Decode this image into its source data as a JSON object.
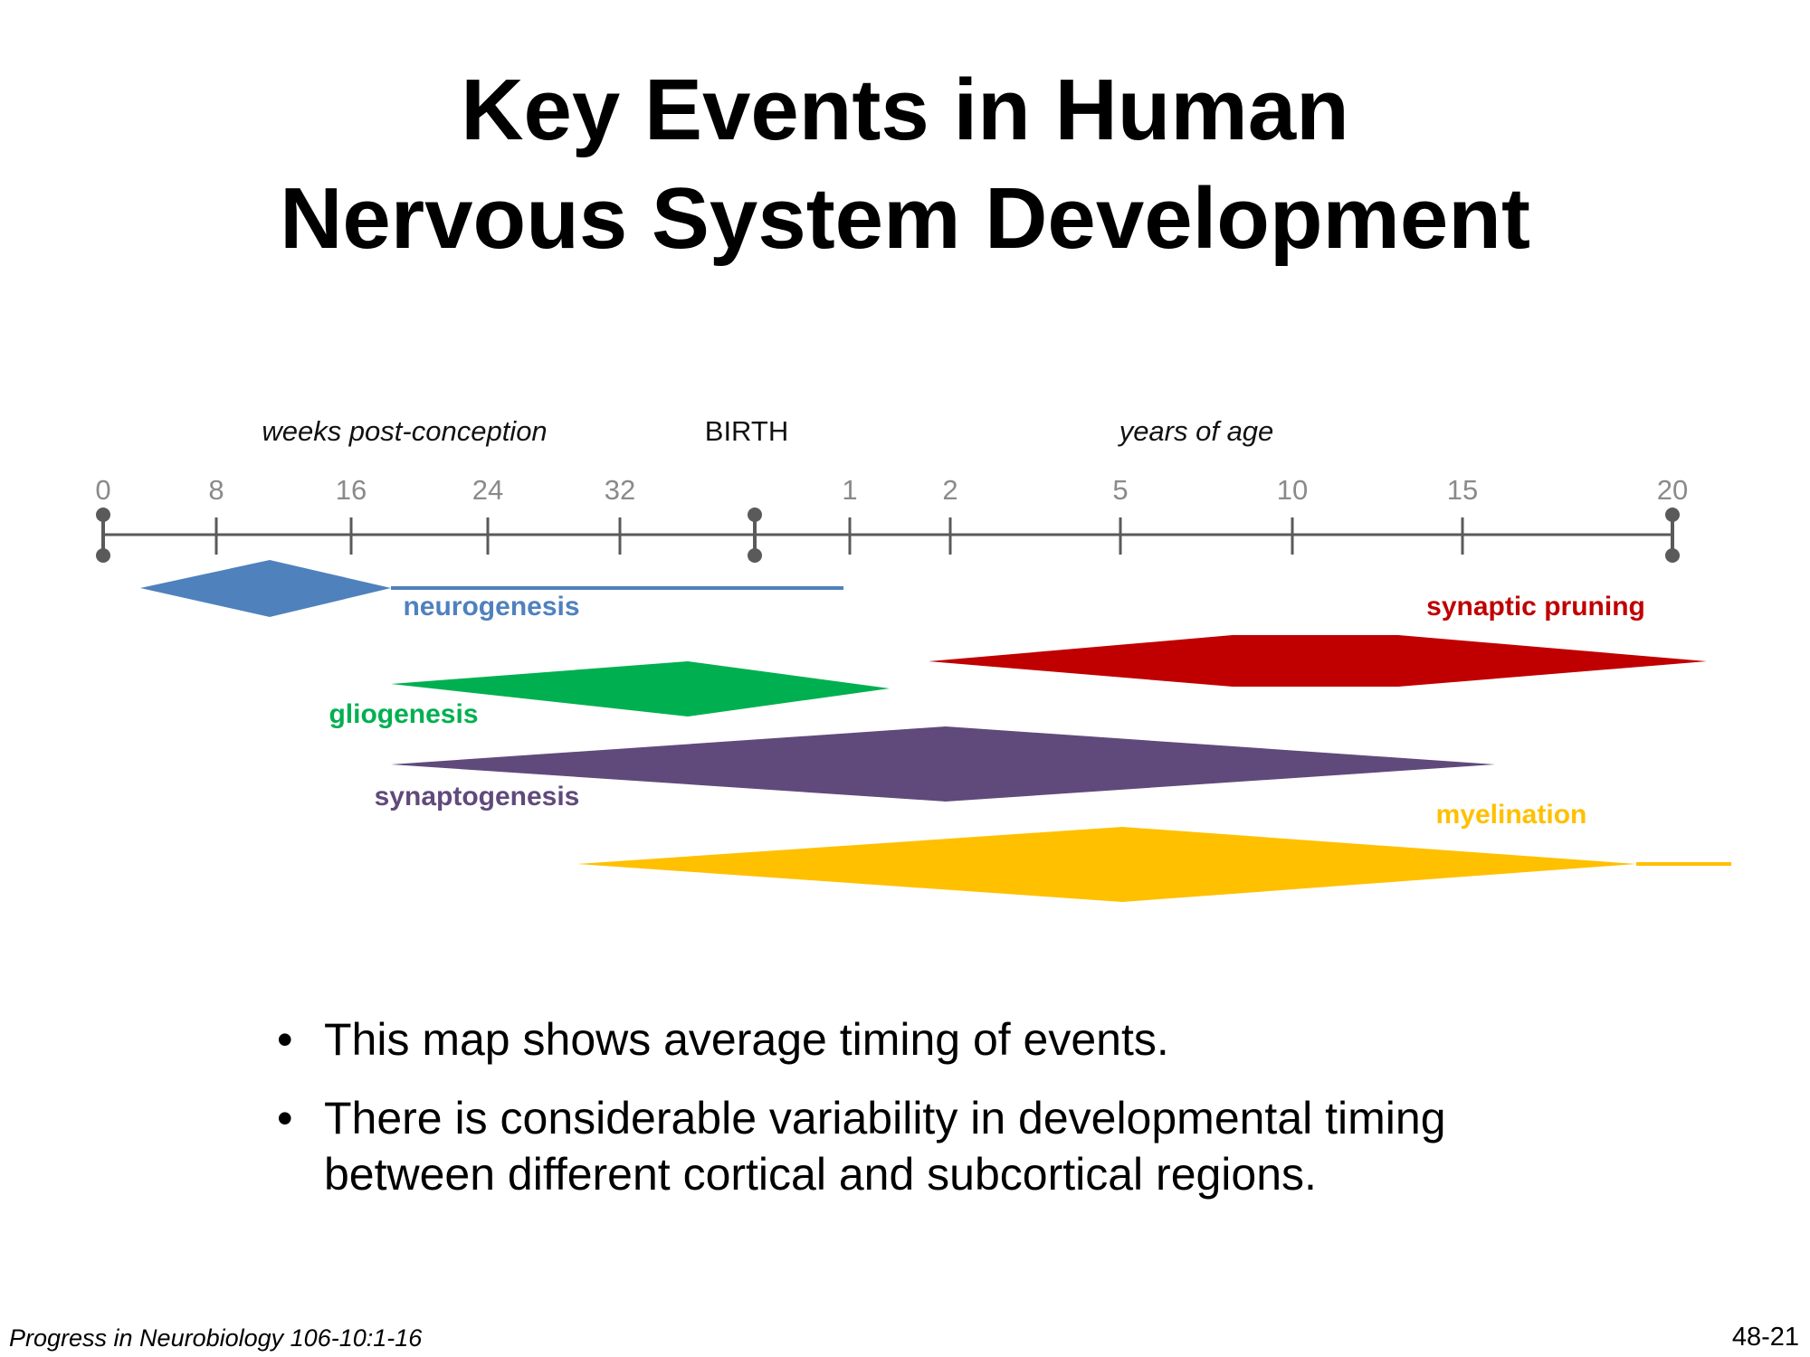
{
  "slide": {
    "title_line1": "Key Events in Human",
    "title_line2": "Nervous System Development",
    "bullets": [
      {
        "lines": [
          "This map shows average timing of events."
        ]
      },
      {
        "lines": [
          "There is considerable variability in developmental timing",
          "between different cortical and subcortical regions."
        ]
      }
    ],
    "citation": "Progress in Neurobiology 106-10:1-16",
    "slide_number": "48-21"
  },
  "timeline": {
    "header_weeks": "weeks post-conception",
    "header_birth": "BIRTH",
    "header_years": "years of age",
    "axis_color": "#5a5a5a",
    "tick_label_color": "#8a8a8a",
    "ticks": [
      {
        "label": "0",
        "pin": true
      },
      {
        "label": "8",
        "pin": false
      },
      {
        "label": "16",
        "pin": false
      },
      {
        "label": "24",
        "pin": false
      },
      {
        "label": "32",
        "pin": false
      },
      {
        "label": "",
        "pin": true
      },
      {
        "label": "1",
        "pin": false
      },
      {
        "label": "2",
        "pin": false
      },
      {
        "label": "5",
        "pin": false
      },
      {
        "label": "10",
        "pin": false
      },
      {
        "label": "15",
        "pin": false
      },
      {
        "label": "20",
        "pin": true
      }
    ],
    "events": [
      {
        "name": "neurogenesis",
        "color": "#4f81bd"
      },
      {
        "name": "gliogenesis",
        "color": "#00b050"
      },
      {
        "name": "synaptogenesis",
        "color": "#604a7b"
      },
      {
        "name": "synaptic pruning",
        "color": "#c00000"
      },
      {
        "name": "myelination",
        "color": "#ffc000"
      }
    ]
  }
}
